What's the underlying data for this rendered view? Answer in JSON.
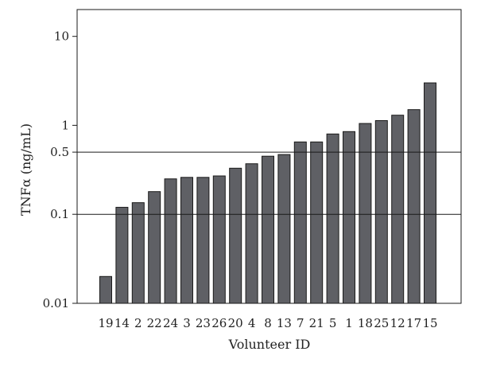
{
  "chart_data": {
    "type": "bar",
    "xlabel": "Volunteer ID",
    "ylabel": "TNFα (ng/mL)",
    "yscale": "log",
    "ylim": [
      0.01,
      20
    ],
    "yticks": [
      {
        "value": 0.01,
        "label": "0.01"
      },
      {
        "value": 0.1,
        "label": "0.1"
      },
      {
        "value": 0.5,
        "label": "0.5"
      },
      {
        "value": 1,
        "label": "1"
      },
      {
        "value": 10,
        "label": "10"
      }
    ],
    "reference_lines": [
      0.1,
      0.5
    ],
    "grid": false,
    "bar_color": "#5f6065",
    "categories": [
      "19",
      "14",
      "2",
      "22",
      "24",
      "3",
      "23",
      "26",
      "20",
      "4",
      "8",
      "13",
      "7",
      "21",
      "5",
      "1",
      "18",
      "25",
      "12",
      "17",
      "15"
    ],
    "values": [
      0.02,
      0.12,
      0.135,
      0.18,
      0.25,
      0.26,
      0.26,
      0.27,
      0.33,
      0.37,
      0.45,
      0.47,
      0.65,
      0.65,
      0.8,
      0.85,
      1.05,
      1.13,
      1.3,
      1.5,
      3.0
    ]
  }
}
